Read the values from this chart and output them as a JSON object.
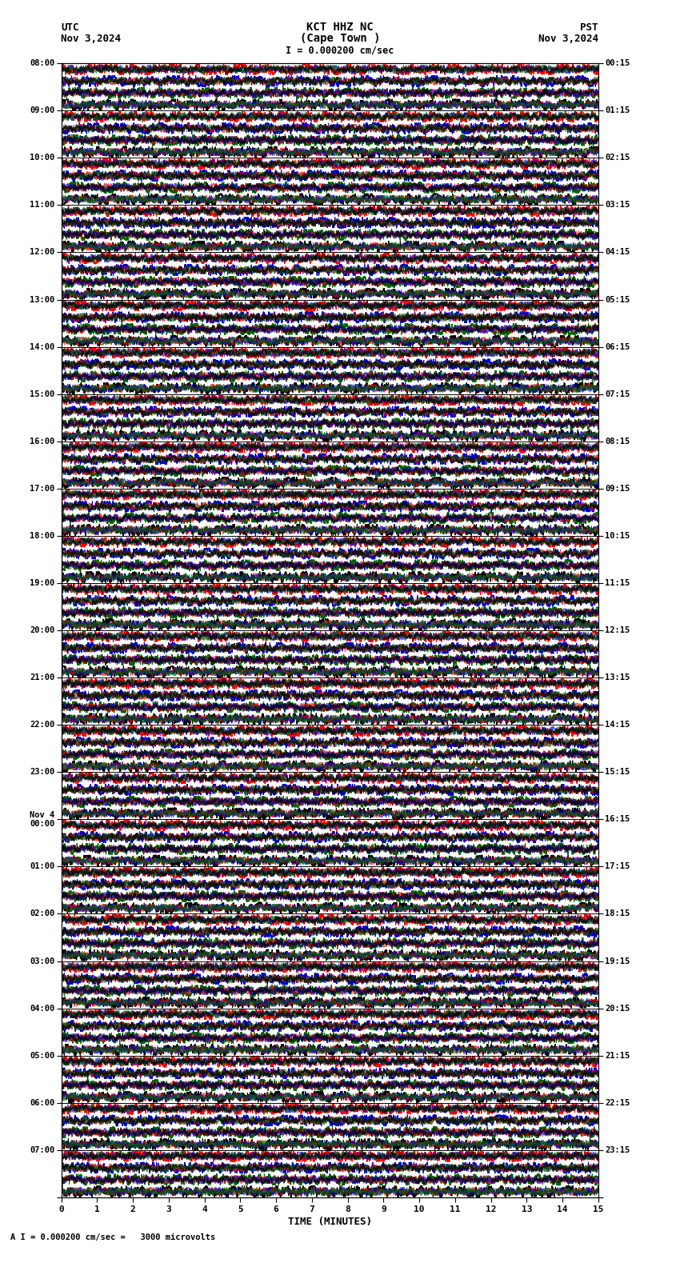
{
  "title_line1": "KCT HHZ NC",
  "title_line2": "(Cape Town )",
  "title_scale": "I = 0.000200 cm/sec",
  "left_label_line1": "UTC",
  "left_label_line2": "Nov 3,2024",
  "right_label_line1": "PST",
  "right_label_line2": "Nov 3,2024",
  "bottom_label": "TIME (MINUTES)",
  "bottom_note": "A I = 0.000200 cm/sec =   3000 microvolts",
  "left_times_utc": [
    "08:00",
    "09:00",
    "10:00",
    "11:00",
    "12:00",
    "13:00",
    "14:00",
    "15:00",
    "16:00",
    "17:00",
    "18:00",
    "19:00",
    "20:00",
    "21:00",
    "22:00",
    "23:00",
    "Nov 4\n00:00",
    "01:00",
    "02:00",
    "03:00",
    "04:00",
    "05:00",
    "06:00",
    "07:00"
  ],
  "right_times_pst": [
    "00:15",
    "01:15",
    "02:15",
    "03:15",
    "04:15",
    "05:15",
    "06:15",
    "07:15",
    "08:15",
    "09:15",
    "10:15",
    "11:15",
    "12:15",
    "13:15",
    "14:15",
    "15:15",
    "16:15",
    "17:15",
    "18:15",
    "19:15",
    "20:15",
    "21:15",
    "22:15",
    "23:15"
  ],
  "num_rows": 24,
  "x_ticks": [
    0,
    1,
    2,
    3,
    4,
    5,
    6,
    7,
    8,
    9,
    10,
    11,
    12,
    13,
    14,
    15
  ],
  "bg_color": "#ffffff",
  "row_colors": [
    "#ff0000",
    "#0000cc",
    "#006400",
    "#000000"
  ],
  "fig_width": 8.5,
  "fig_height": 15.84,
  "dpi": 100
}
